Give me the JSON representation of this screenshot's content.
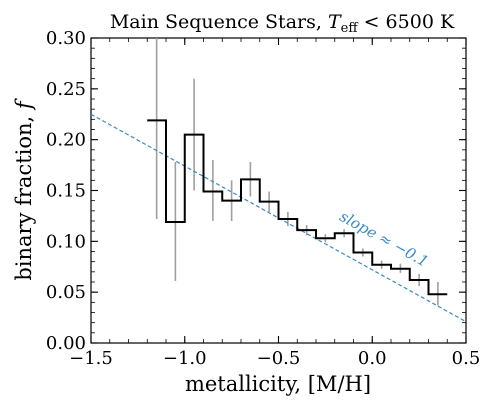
{
  "chart_data": {
    "type": "step",
    "title": "Main Sequence Stars, T_eff < 6500 K",
    "title_parts": {
      "prefix": "Main Sequence Stars, ",
      "var": "T",
      "sub": "eff",
      "suffix": " < 6500 K"
    },
    "xlabel": "metallicity, [M/H]",
    "ylabel": "binary fraction, f",
    "ylabel_parts": {
      "prefix": "binary fraction, ",
      "var": "f"
    },
    "xlim": [
      -1.5,
      0.5
    ],
    "ylim": [
      0.0,
      0.3
    ],
    "xticks": [
      -1.5,
      -1.0,
      -0.5,
      0.0,
      0.5
    ],
    "xtick_labels": [
      "−1.5",
      "−1.0",
      "−0.5",
      "0.0",
      "0.5"
    ],
    "yticks": [
      0.0,
      0.05,
      0.1,
      0.15,
      0.2,
      0.25,
      0.3
    ],
    "ytick_labels": [
      "0.00",
      "0.05",
      "0.10",
      "0.15",
      "0.20",
      "0.25",
      "0.30"
    ],
    "grid": false,
    "bin_width": 0.1,
    "bins": [
      {
        "center": -1.15,
        "f": 0.219,
        "err_low": 0.097,
        "err_high": 0.081
      },
      {
        "center": -1.05,
        "f": 0.119,
        "err_low": 0.058,
        "err_high": 0.059
      },
      {
        "center": -0.95,
        "f": 0.205,
        "err_low": 0.055,
        "err_high": 0.055
      },
      {
        "center": -0.85,
        "f": 0.149,
        "err_low": 0.029,
        "err_high": 0.031
      },
      {
        "center": -0.75,
        "f": 0.14,
        "err_low": 0.02,
        "err_high": 0.02
      },
      {
        "center": -0.65,
        "f": 0.161,
        "err_low": 0.017,
        "err_high": 0.017
      },
      {
        "center": -0.55,
        "f": 0.139,
        "err_low": 0.01,
        "err_high": 0.01
      },
      {
        "center": -0.45,
        "f": 0.122,
        "err_low": 0.007,
        "err_high": 0.007
      },
      {
        "center": -0.35,
        "f": 0.111,
        "err_low": 0.005,
        "err_high": 0.005
      },
      {
        "center": -0.25,
        "f": 0.103,
        "err_low": 0.004,
        "err_high": 0.004
      },
      {
        "center": -0.15,
        "f": 0.108,
        "err_low": 0.004,
        "err_high": 0.004
      },
      {
        "center": -0.05,
        "f": 0.089,
        "err_low": 0.004,
        "err_high": 0.004
      },
      {
        "center": 0.05,
        "f": 0.077,
        "err_low": 0.004,
        "err_high": 0.004
      },
      {
        "center": 0.15,
        "f": 0.073,
        "err_low": 0.004,
        "err_high": 0.005
      },
      {
        "center": 0.25,
        "f": 0.062,
        "err_low": 0.006,
        "err_high": 0.006
      },
      {
        "center": 0.35,
        "f": 0.048,
        "err_low": 0.011,
        "err_high": 0.012
      }
    ],
    "trend_line": {
      "label": "slope ≈ −0.1",
      "x": [
        -1.5,
        0.5
      ],
      "y": [
        0.225,
        0.021
      ],
      "style": "dashed"
    },
    "colors": {
      "step": "#000000",
      "errorbar": "#a0a0a0",
      "trend": "#3a8bc4",
      "axes": "#000000"
    }
  }
}
